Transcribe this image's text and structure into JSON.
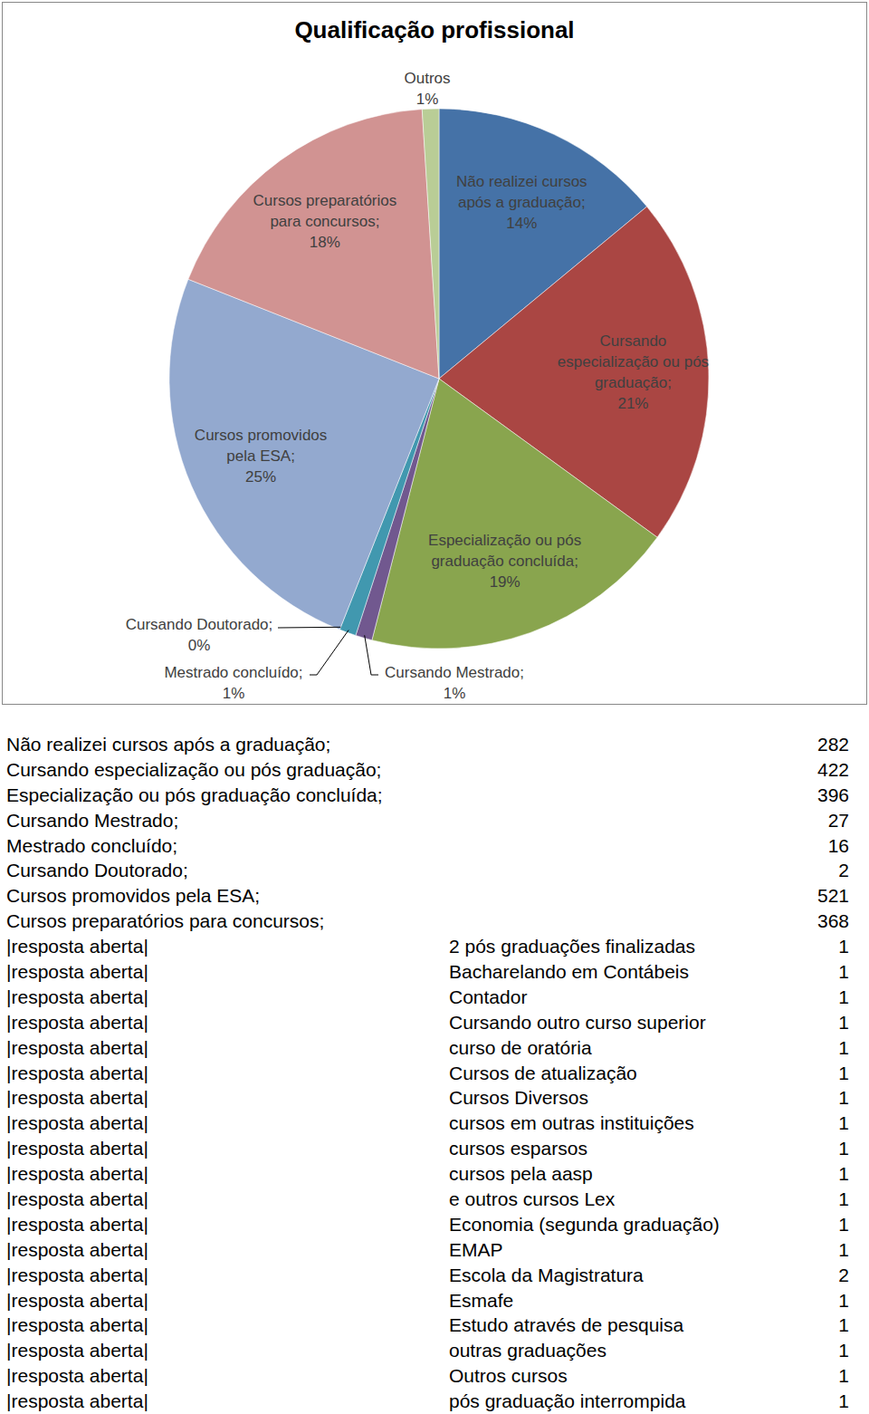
{
  "chart_data": {
    "type": "pie",
    "title": "Qualificação profissional",
    "categories": [
      "Não realizei cursos após a graduação;",
      "Cursando especialização ou pós graduação;",
      "Especialização ou pós graduação concluída;",
      "Cursando Mestrado;",
      "Mestrado concluído;",
      "Cursando Doutorado;",
      "Cursos promovidos pela ESA;",
      "Cursos preparatórios para concursos;",
      "Outros"
    ],
    "values": [
      14,
      21,
      19,
      1,
      1,
      0,
      25,
      18,
      1
    ],
    "value_labels": [
      "14%",
      "21%",
      "19%",
      "1%",
      "1%",
      "0%",
      "25%",
      "18%",
      "1%"
    ],
    "colors": [
      "#4572A7",
      "#AA4643",
      "#89A54E",
      "#71588F",
      "#4198AF",
      "#DB843D",
      "#93A9CF",
      "#D19392",
      "#B9CD96"
    ],
    "data_labels": true
  },
  "table": {
    "rows": [
      {
        "label": "Não realizei cursos após a graduação;",
        "count": 282
      },
      {
        "label": "Cursando especialização ou pós graduação;",
        "count": 422
      },
      {
        "label": "Especialização ou pós graduação concluída;",
        "count": 396
      },
      {
        "label": "Cursando Mestrado;",
        "count": 27
      },
      {
        "label": "Mestrado concluído;",
        "count": 16
      },
      {
        "label": "Cursando Doutorado;",
        "count": 2
      },
      {
        "label": "Cursos promovidos pela ESA;",
        "count": 521
      },
      {
        "label": "Cursos preparatórios para concursos;",
        "count": 368
      },
      {
        "label": "|resposta aberta|",
        "answer": "2 pós graduações finalizadas",
        "count": 1
      },
      {
        "label": "|resposta aberta|",
        "answer": "Bacharelando em Contábeis",
        "count": 1
      },
      {
        "label": "|resposta aberta|",
        "answer": "Contador",
        "count": 1
      },
      {
        "label": "|resposta aberta|",
        "answer": "Cursando outro curso superior",
        "count": 1
      },
      {
        "label": "|resposta aberta|",
        "answer": "curso de oratória",
        "count": 1
      },
      {
        "label": "|resposta aberta|",
        "answer": "Cursos de atualização",
        "count": 1
      },
      {
        "label": "|resposta aberta|",
        "answer": "Cursos Diversos",
        "count": 1
      },
      {
        "label": "|resposta aberta|",
        "answer": "cursos em outras instituições",
        "count": 1
      },
      {
        "label": "|resposta aberta|",
        "answer": "cursos esparsos",
        "count": 1
      },
      {
        "label": "|resposta aberta|",
        "answer": "cursos pela aasp",
        "count": 1
      },
      {
        "label": "|resposta aberta|",
        "answer": "e outros cursos Lex",
        "count": 1
      },
      {
        "label": "|resposta aberta|",
        "answer": "Economia (segunda graduação)",
        "count": 1
      },
      {
        "label": "|resposta aberta|",
        "answer": "EMAP",
        "count": 1
      },
      {
        "label": "|resposta aberta|",
        "answer": "Escola da Magistratura",
        "count": 2
      },
      {
        "label": "|resposta aberta|",
        "answer": "Esmafe",
        "count": 1
      },
      {
        "label": "|resposta aberta|",
        "answer": "Estudo através de pesquisa",
        "count": 1
      },
      {
        "label": "|resposta aberta|",
        "answer": "outras graduações",
        "count": 1
      },
      {
        "label": "|resposta aberta|",
        "answer": "Outros cursos",
        "count": 1
      },
      {
        "label": "|resposta aberta|",
        "answer": "pós graduação interrompida",
        "count": 1
      }
    ]
  }
}
